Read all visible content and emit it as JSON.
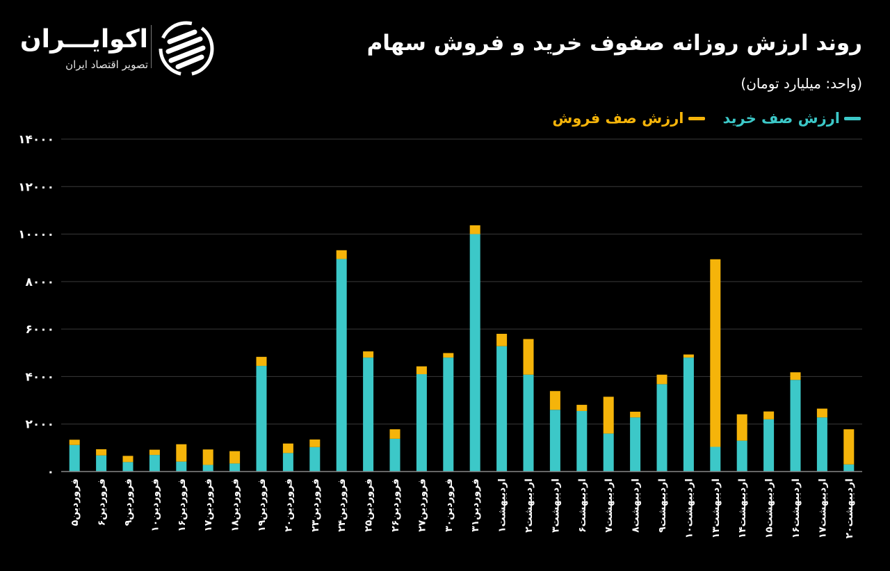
{
  "brand": {
    "name": "اکوایـــران",
    "tagline": "تصویر اقتصاد ایران"
  },
  "header": {
    "title": "روند ارزش روزانه صفوف خرید و فروش سهام",
    "unit": "(واحد: میلیارد تومان)"
  },
  "colors": {
    "background": "#000000",
    "buy": "#3cc8c8",
    "sell": "#f5b40a",
    "grid": "#3a3a3a",
    "text": "#ffffff"
  },
  "chart_data": {
    "type": "bar",
    "stacked": true,
    "title": "روند ارزش روزانه صفوف خرید و فروش سهام",
    "ylabel": "(واحد: میلیارد تومان)",
    "ylim": [
      0,
      14000
    ],
    "yticks": [
      0,
      2000,
      4000,
      6000,
      8000,
      10000,
      12000,
      14000
    ],
    "ytick_labels": [
      "۰",
      "۲۰۰۰",
      "۴۰۰۰",
      "۶۰۰۰",
      "۸۰۰۰",
      "۱۰۰۰۰",
      "۱۲۰۰۰",
      "۱۴۰۰۰"
    ],
    "grid": true,
    "legend_position": "top-right",
    "categories": [
      "فروردین۵",
      "فروردین۶",
      "فروردین۹",
      "فروردین۱۰",
      "فروردین۱۶",
      "فروردین۱۷",
      "فروردین۱۸",
      "فروردین۱۹",
      "فروردین۲۰",
      "فروردین۲۳",
      "فروردین۲۴",
      "فروردین۲۵",
      "فروردین۲۶",
      "فروردین۲۷",
      "فروردین۳۰",
      "فروردین۳۱",
      "اردیبهشت۱",
      "اردیبهشت۲",
      "اردیبهشت۳",
      "اردیبهشت۶",
      "اردیبهشت۷",
      "اردیبهشت۸",
      "اردیبهشت۹",
      "اردیبهشت۱۰",
      "اردیبهشت۱۳",
      "اردیبهشت۱۴",
      "اردیبهشت۱۵",
      "اردیبهشت۱۶",
      "اردیبهشت۱۷",
      "اردیبهشت۲۰"
    ],
    "series": [
      {
        "name": "ارزش صف خرید",
        "color": "#3cc8c8",
        "values": [
          1120,
          680,
          400,
          700,
          420,
          280,
          340,
          4450,
          780,
          1030,
          8950,
          4800,
          1380,
          4100,
          4800,
          10000,
          5280,
          4080,
          2600,
          2550,
          1600,
          2280,
          3680,
          4800,
          1040,
          1300,
          2200,
          3860,
          2280,
          300
        ]
      },
      {
        "name": "ارزش صف فروش",
        "color": "#f5b40a",
        "values": [
          220,
          260,
          260,
          220,
          730,
          650,
          520,
          380,
          400,
          320,
          370,
          260,
          400,
          330,
          190,
          370,
          520,
          1500,
          790,
          260,
          1550,
          240,
          400,
          130,
          7900,
          1110,
          330,
          320,
          370,
          1480
        ]
      }
    ]
  }
}
